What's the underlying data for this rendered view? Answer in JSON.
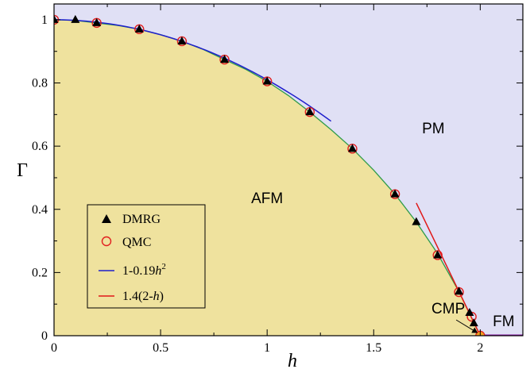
{
  "chart_data": {
    "type": "scatter",
    "xlabel": "h",
    "ylabel": "Γ",
    "xlim": [
      0,
      2.2
    ],
    "ylim": [
      0,
      1.05
    ],
    "x_ticks": [
      {
        "value": 0,
        "label": "0"
      },
      {
        "value": 0.5,
        "label": "0.5"
      },
      {
        "value": 1,
        "label": "1"
      },
      {
        "value": 1.5,
        "label": "1.5"
      },
      {
        "value": 2,
        "label": "2"
      }
    ],
    "y_ticks": [
      {
        "value": 0,
        "label": "0"
      },
      {
        "value": 0.2,
        "label": "0.2"
      },
      {
        "value": 0.4,
        "label": "0.4"
      },
      {
        "value": 0.6,
        "label": "0.6"
      },
      {
        "value": 0.8,
        "label": "0.8"
      },
      {
        "value": 1,
        "label": "1"
      }
    ],
    "phase_boundary": {
      "h": [
        0,
        0.1,
        0.2,
        0.3,
        0.4,
        0.5,
        0.6,
        0.7,
        0.8,
        0.9,
        1.0,
        1.1,
        1.2,
        1.3,
        1.4,
        1.5,
        1.6,
        1.7,
        1.8,
        1.9,
        1.95,
        2.0
      ],
      "gamma": [
        1.0,
        0.998,
        0.99,
        0.982,
        0.97,
        0.953,
        0.932,
        0.906,
        0.874,
        0.843,
        0.805,
        0.76,
        0.708,
        0.652,
        0.592,
        0.524,
        0.448,
        0.36,
        0.26,
        0.14,
        0.07,
        0.0
      ],
      "colors": {
        "line": "#2e9b4a",
        "below_fill": "#efe29e",
        "above_fill": "#e0e0f5"
      }
    },
    "fm_line": {
      "x": [
        2.0,
        2.2
      ],
      "y": [
        0.0,
        0.0
      ],
      "color": "#8a1aa6"
    },
    "series": [
      {
        "name": "DMRG",
        "marker": "filled-triangle",
        "color": "#000000",
        "x": [
          0,
          0.1,
          0.2,
          0.4,
          0.6,
          0.8,
          1.0,
          1.2,
          1.4,
          1.6,
          1.7,
          1.8,
          1.9,
          1.95,
          1.97
        ],
        "y": [
          1.0,
          1.0,
          0.99,
          0.97,
          0.932,
          0.874,
          0.805,
          0.708,
          0.592,
          0.448,
          0.36,
          0.255,
          0.14,
          0.073,
          0.04
        ]
      },
      {
        "name": "QMC",
        "marker": "open-circle",
        "color": "#e11f1f",
        "x": [
          0,
          0.2,
          0.4,
          0.6,
          0.8,
          1.0,
          1.2,
          1.4,
          1.6,
          1.8,
          1.9,
          1.96,
          2.0
        ],
        "y": [
          1.0,
          0.99,
          0.97,
          0.932,
          0.874,
          0.805,
          0.708,
          0.592,
          0.448,
          0.255,
          0.138,
          0.06,
          0.0
        ]
      },
      {
        "name": "1-0.19h²",
        "legend_parts": [
          "1-0.19",
          "h",
          "2"
        ],
        "type": "line",
        "color": "#1f1fcc",
        "formula": {
          "a": 1,
          "b": -0.19,
          "h_range": [
            0,
            1.3
          ]
        }
      },
      {
        "name": "1.4(2-h)",
        "legend_parts": [
          "1.4(2-",
          "h",
          ")"
        ],
        "type": "line",
        "color": "#e01818",
        "formula": {
          "slope": -1.4,
          "root": 2,
          "h_range": [
            1.7,
            2.0
          ]
        }
      }
    ],
    "annotations": [
      {
        "text": "AFM",
        "x": 1.0,
        "y": 0.42
      },
      {
        "text": "PM",
        "x": 1.78,
        "y": 0.64
      },
      {
        "text": "FM",
        "x": 2.11,
        "y": 0.03
      },
      {
        "text": "CMP",
        "x": 1.85,
        "y": 0.07,
        "arrow_to": [
          1.985,
          0.01
        ]
      }
    ],
    "critical_point": {
      "x": 2.0,
      "y": 0.0,
      "color": "#f0a020"
    },
    "legend": {
      "position": "bottom-left",
      "entries": [
        "DMRG",
        "QMC",
        "1-0.19h²",
        "1.4(2-h)"
      ]
    }
  }
}
